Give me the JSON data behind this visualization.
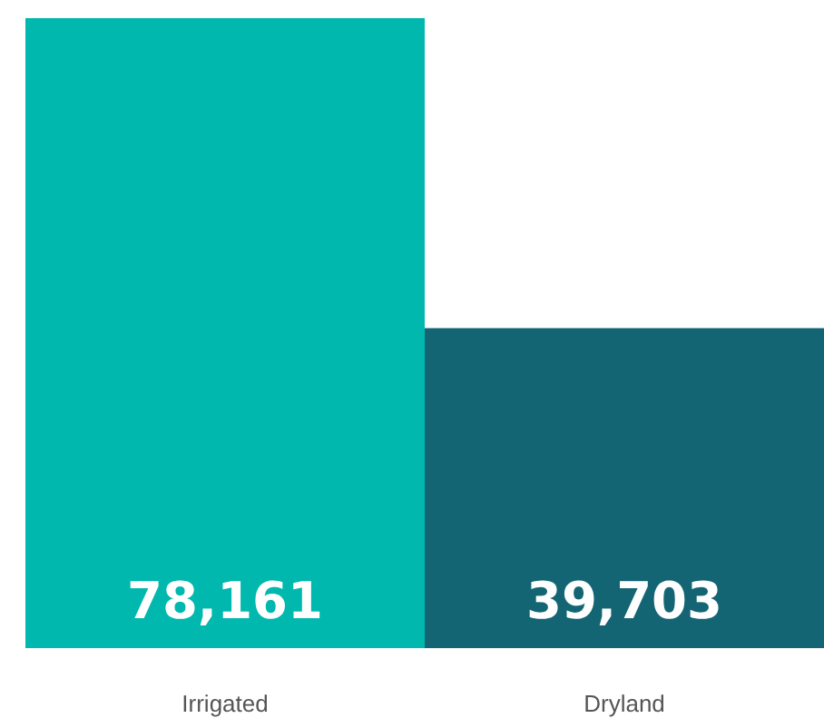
{
  "chart_data": {
    "type": "bar",
    "categories": [
      "Irrigated",
      "Dryland"
    ],
    "values": [
      78161,
      39703
    ],
    "value_labels": [
      "78,161",
      "39,703"
    ],
    "colors": [
      "#00b8ae",
      "#146574"
    ],
    "grid": false
  }
}
